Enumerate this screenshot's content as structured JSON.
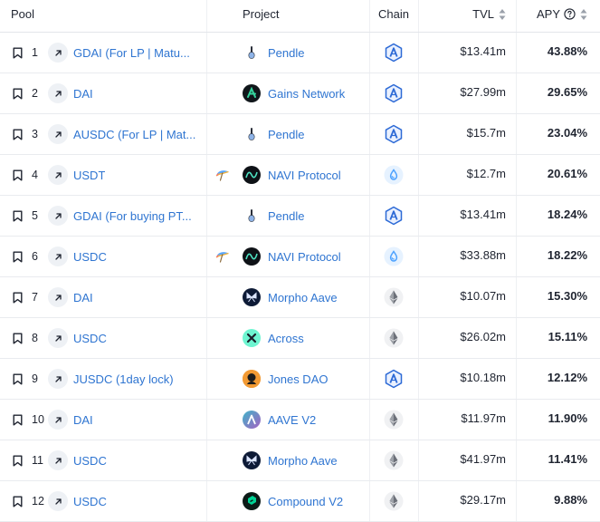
{
  "header": {
    "pool": "Pool",
    "project": "Project",
    "chain": "Chain",
    "tvl": "TVL",
    "apy": "APY"
  },
  "rows": [
    {
      "rank": "1",
      "pool": "GDAI (For LP | Matu...",
      "project": "Pendle",
      "project_icon": "pendle-logo",
      "chain_icon": "arbitrum-icon",
      "tvl": "$13.41m",
      "apy": "43.88%"
    },
    {
      "rank": "2",
      "pool": "DAI",
      "project": "Gains Network",
      "project_icon": "gains-network-logo",
      "chain_icon": "arbitrum-icon",
      "tvl": "$27.99m",
      "apy": "29.65%"
    },
    {
      "rank": "3",
      "pool": "AUSDC (For LP | Mat...",
      "project": "Pendle",
      "project_icon": "pendle-logo",
      "chain_icon": "arbitrum-icon",
      "tvl": "$15.7m",
      "apy": "23.04%"
    },
    {
      "rank": "4",
      "pool": "USDT",
      "token_icon": "umbrella-icon",
      "project": "NAVI Protocol",
      "project_icon": "navi-logo",
      "chain_icon": "sui-icon",
      "tvl": "$12.7m",
      "apy": "20.61%"
    },
    {
      "rank": "5",
      "pool": "GDAI (For buying PT...",
      "project": "Pendle",
      "project_icon": "pendle-logo",
      "chain_icon": "arbitrum-icon",
      "tvl": "$13.41m",
      "apy": "18.24%"
    },
    {
      "rank": "6",
      "pool": "USDC",
      "token_icon": "umbrella-icon",
      "project": "NAVI Protocol",
      "project_icon": "navi-logo",
      "chain_icon": "sui-icon",
      "tvl": "$33.88m",
      "apy": "18.22%"
    },
    {
      "rank": "7",
      "pool": "DAI",
      "project": "Morpho Aave",
      "project_icon": "morpho-logo",
      "chain_icon": "ethereum-icon",
      "tvl": "$10.07m",
      "apy": "15.30%"
    },
    {
      "rank": "8",
      "pool": "USDC",
      "project": "Across",
      "project_icon": "across-logo",
      "chain_icon": "ethereum-icon",
      "tvl": "$26.02m",
      "apy": "15.11%"
    },
    {
      "rank": "9",
      "pool": "JUSDC (1day lock)",
      "project": "Jones DAO",
      "project_icon": "jones-dao-logo",
      "chain_icon": "arbitrum-icon",
      "tvl": "$10.18m",
      "apy": "12.12%"
    },
    {
      "rank": "10",
      "pool": "DAI",
      "project": "AAVE V2",
      "project_icon": "aave-logo",
      "chain_icon": "ethereum-icon",
      "tvl": "$11.97m",
      "apy": "11.90%"
    },
    {
      "rank": "11",
      "pool": "USDC",
      "project": "Morpho Aave",
      "project_icon": "morpho-logo",
      "chain_icon": "ethereum-icon",
      "tvl": "$41.97m",
      "apy": "11.41%"
    },
    {
      "rank": "12",
      "pool": "USDC",
      "project": "Compound V2",
      "project_icon": "compound-logo",
      "chain_icon": "ethereum-icon",
      "tvl": "$29.17m",
      "apy": "9.88%"
    }
  ],
  "colors": {
    "link": "#2f75d1",
    "text": "#1f2430",
    "border": "#e9ebef",
    "arbitrum": "#2d6ad6",
    "sui": "#4da2ff",
    "ethereum": "#6b6f78"
  }
}
